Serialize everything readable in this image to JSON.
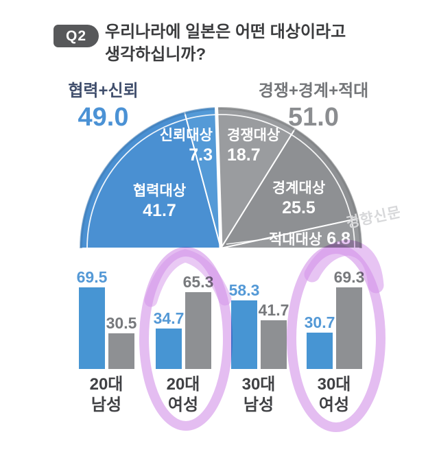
{
  "header": {
    "badge": "Q2",
    "question_line1": "우리나라에 일본은 어떤 대상이라고",
    "question_line2": "생각하십니까?"
  },
  "watermark": "경향신문",
  "colors": {
    "blue": "#4795d3",
    "gray": "#8e9093",
    "blue_text": "#4b92d5",
    "gray_text": "#8b8d90",
    "navy_text": "#414f6d",
    "highlight_marker": "#cd87e6",
    "badge_bg": "#57585a"
  },
  "chart_data": [
    {
      "type": "pie",
      "shape": "semicircle",
      "title": "우리나라에 일본은 어떤 대상이라고 생각하십니까?",
      "legend_position": "above",
      "groups": [
        {
          "label": "협력+신뢰",
          "value": 49.0,
          "display": "49.0"
        },
        {
          "label": "경쟁+경계+적대",
          "value": 51.0,
          "display": "51.0"
        }
      ],
      "segments": [
        {
          "key": "cooperation-target",
          "label": "협력대상",
          "value": 41.7,
          "display": "41.7",
          "color": "#4a90d2"
        },
        {
          "key": "trust-target",
          "label": "신뢰대상",
          "value": 7.3,
          "display": "7.3",
          "color": "#549ad7"
        },
        {
          "key": "competition-target",
          "label": "경쟁대상",
          "value": 18.7,
          "display": "18.7",
          "color": "#9a9c9f"
        },
        {
          "key": "wariness-target",
          "label": "경계대상",
          "value": 25.5,
          "display": "25.5",
          "color": "#8e9093"
        },
        {
          "key": "hostility-target",
          "label": "적대대상",
          "value": 6.8,
          "display": "6.8",
          "color": "#97999c"
        }
      ]
    },
    {
      "type": "bar",
      "categories": [
        "20대 남성",
        "20대 여성",
        "30대 남성",
        "30대 여성"
      ],
      "series": [
        {
          "key": "cooperation-trust",
          "name": "협력+신뢰",
          "color": "#4795d3",
          "label_color": "#5499d6",
          "values": [
            69.5,
            34.7,
            58.3,
            30.7
          ]
        },
        {
          "key": "competition-wariness-hostility",
          "name": "경쟁+경계+적대",
          "color": "#8e9093",
          "label_color": "#77797c",
          "values": [
            30.5,
            65.3,
            41.7,
            69.3
          ]
        }
      ],
      "ylim": [
        0,
        100
      ],
      "grid": false,
      "highlighted_categories": [
        "20대 여성",
        "30대 여성"
      ]
    }
  ]
}
